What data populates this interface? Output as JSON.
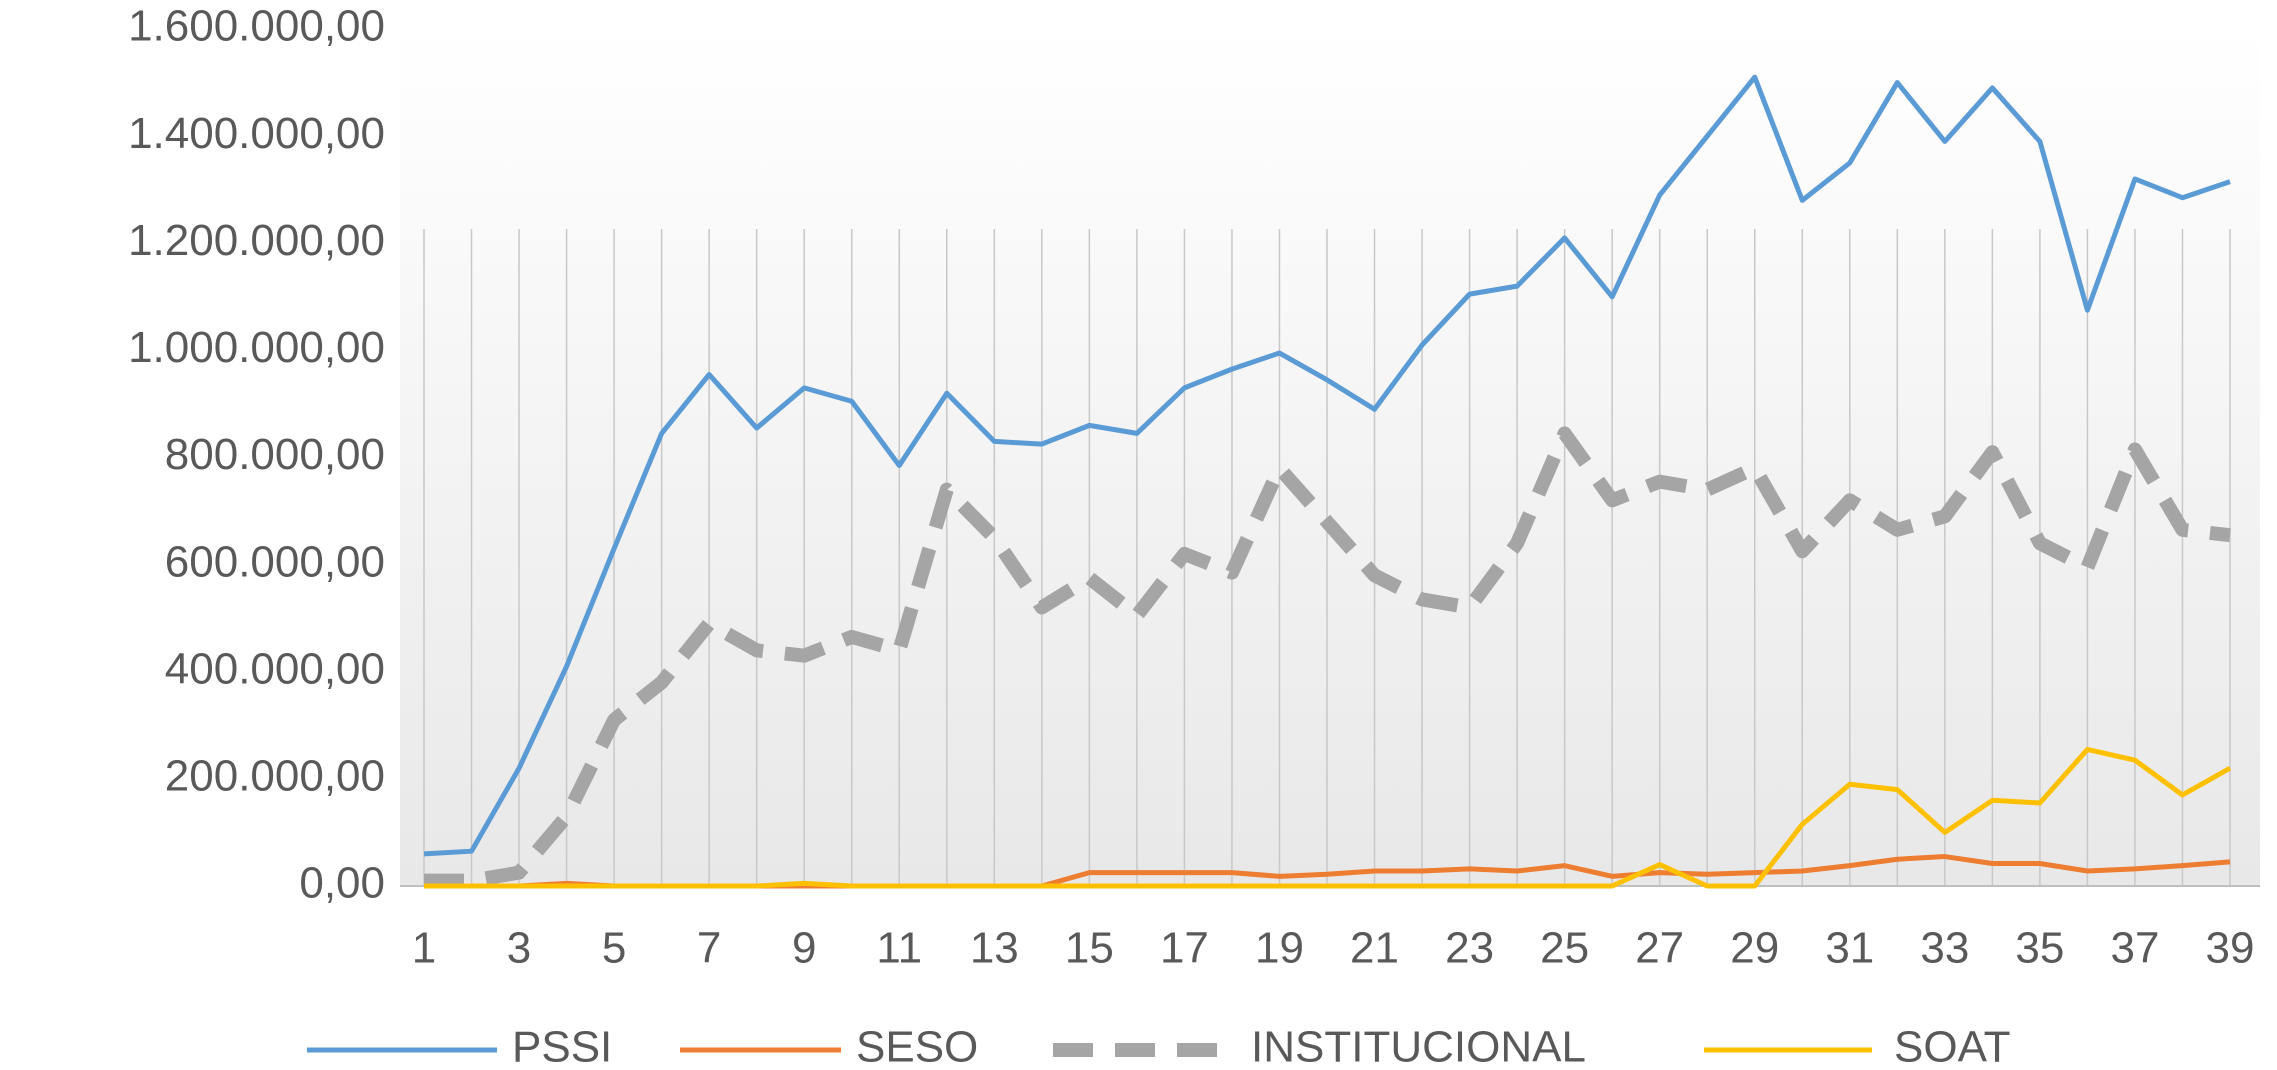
{
  "chart_data": {
    "type": "line",
    "categories": [
      "1",
      null,
      "3",
      null,
      "5",
      null,
      "7",
      null,
      "9",
      null,
      "11",
      null,
      "13",
      null,
      "15",
      null,
      "17",
      null,
      "19",
      null,
      "21",
      null,
      "23",
      null,
      "25",
      null,
      "27",
      null,
      "29",
      null,
      "31",
      null,
      "33",
      null,
      "35",
      null,
      "37",
      null,
      "39"
    ],
    "series": [
      {
        "name": "PSSI",
        "color": "#5b9bd5",
        "dash": false,
        "values": [
          60000,
          65000,
          220000,
          410000,
          630000,
          845000,
          955000,
          855000,
          930000,
          905000,
          785000,
          920000,
          830000,
          825000,
          860000,
          845000,
          930000,
          965000,
          995000,
          945000,
          890000,
          1010000,
          1105000,
          1120000,
          1210000,
          1100000,
          1290000,
          1400000,
          1510000,
          1280000,
          1350000,
          1500000,
          1390000,
          1490000,
          1390000,
          1075000,
          1320000,
          1285000,
          1315000
        ]
      },
      {
        "name": "SESO",
        "color": "#ed7d31",
        "dash": false,
        "values": [
          0,
          0,
          0,
          5000,
          0,
          0,
          0,
          0,
          0,
          0,
          0,
          0,
          0,
          0,
          25000,
          25000,
          25000,
          25000,
          18000,
          22000,
          28000,
          28000,
          32000,
          28000,
          38000,
          18000,
          25000,
          22000,
          25000,
          28000,
          38000,
          50000,
          55000,
          42000,
          42000,
          28000,
          32000,
          38000,
          45000
        ]
      },
      {
        "name": "INSTITUCIONAL",
        "color": "#a5a5a5",
        "dash": true,
        "values": [
          10000,
          10000,
          25000,
          130000,
          310000,
          380000,
          490000,
          440000,
          430000,
          465000,
          440000,
          740000,
          650000,
          520000,
          575000,
          505000,
          620000,
          585000,
          780000,
          680000,
          580000,
          535000,
          520000,
          640000,
          845000,
          720000,
          755000,
          740000,
          780000,
          625000,
          720000,
          665000,
          690000,
          810000,
          640000,
          595000,
          815000,
          665000,
          655000
        ]
      },
      {
        "name": "SOAT",
        "color": "#ffc000",
        "dash": false,
        "values": [
          0,
          0,
          0,
          0,
          0,
          0,
          0,
          0,
          5000,
          0,
          0,
          0,
          0,
          0,
          0,
          0,
          0,
          0,
          0,
          0,
          0,
          0,
          0,
          0,
          0,
          0,
          40000,
          0,
          0,
          115000,
          190000,
          180000,
          100000,
          160000,
          155000,
          255000,
          235000,
          170000,
          220000
        ]
      }
    ],
    "ylim": [
      0,
      1600000
    ],
    "yticks": [
      {
        "value": 0,
        "label": "0,00"
      },
      {
        "value": 200000,
        "label": "200.000,00"
      },
      {
        "value": 400000,
        "label": "400.000,00"
      },
      {
        "value": 600000,
        "label": "600.000,00"
      },
      {
        "value": 800000,
        "label": "800.000,00"
      },
      {
        "value": 1000000,
        "label": "1.000.000,00"
      },
      {
        "value": 1200000,
        "label": "1.200.000,00"
      },
      {
        "value": 1400000,
        "label": "1.400.000,00"
      },
      {
        "value": 1600000,
        "label": "1.600.000,00"
      }
    ],
    "grid": "vertical",
    "legend": "bottom"
  }
}
